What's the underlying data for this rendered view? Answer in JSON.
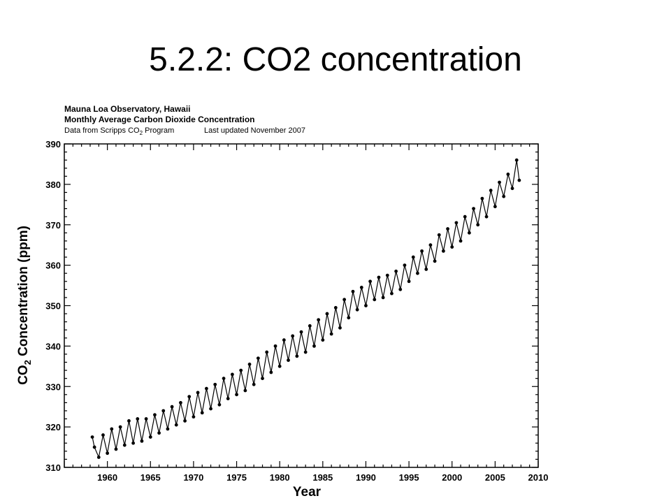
{
  "slide": {
    "title": "5.2.2: CO2 concentration"
  },
  "chart_data": {
    "type": "line",
    "header": {
      "line1": "Mauna Loa Observatory, Hawaii",
      "line2": "Monthly Average Carbon Dioxide Concentration",
      "line3_prefix": "Data from Scripps CO",
      "line3_sub": "2",
      "line3_suffix": " Program",
      "line3_updated": "Last updated November 2007"
    },
    "xlabel": "Year",
    "ylabel_prefix": "CO",
    "ylabel_sub": "2",
    "ylabel_suffix": " Concentration (ppm)",
    "xlim": [
      1955,
      2010
    ],
    "ylim": [
      310,
      390
    ],
    "x_ticks": [
      "1960",
      "1965",
      "1970",
      "1975",
      "1980",
      "1985",
      "1990",
      "1995",
      "2000",
      "2005",
      "2010"
    ],
    "y_ticks": [
      "310",
      "320",
      "330",
      "340",
      "350",
      "360",
      "370",
      "380",
      "390"
    ],
    "grid": false,
    "series": [
      {
        "x": [
          1958.25,
          1958.5,
          1959.0,
          1959.5,
          1960.0,
          1960.5,
          1961.0,
          1961.5,
          1962.0,
          1962.5,
          1963.0,
          1963.5,
          1964.0,
          1964.5,
          1965.0,
          1965.5,
          1966.0,
          1966.5,
          1967.0,
          1967.5,
          1968.0,
          1968.5,
          1969.0,
          1969.5,
          1970.0,
          1970.5,
          1971.0,
          1971.5,
          1972.0,
          1972.5,
          1973.0,
          1973.5,
          1974.0,
          1974.5,
          1975.0,
          1975.5,
          1976.0,
          1976.5,
          1977.0,
          1977.5,
          1978.0,
          1978.5,
          1979.0,
          1979.5,
          1980.0,
          1980.5,
          1981.0,
          1981.5,
          1982.0,
          1982.5,
          1983.0,
          1983.5,
          1984.0,
          1984.5,
          1985.0,
          1985.5,
          1986.0,
          1986.5,
          1987.0,
          1987.5,
          1988.0,
          1988.5,
          1989.0,
          1989.5,
          1990.0,
          1990.5,
          1991.0,
          1991.5,
          1992.0,
          1992.5,
          1993.0,
          1993.5,
          1994.0,
          1994.5,
          1995.0,
          1995.5,
          1996.0,
          1996.5,
          1997.0,
          1997.5,
          1998.0,
          1998.5,
          1999.0,
          1999.5,
          2000.0,
          2000.5,
          2001.0,
          2001.5,
          2002.0,
          2002.5,
          2003.0,
          2003.5,
          2004.0,
          2004.5,
          2005.0,
          2005.5,
          2006.0,
          2006.5,
          2007.0,
          2007.5,
          2007.8
        ],
        "y": [
          317.5,
          315.0,
          312.5,
          318.0,
          313.5,
          319.5,
          314.5,
          320.0,
          315.5,
          321.5,
          316.0,
          322.0,
          316.5,
          322.0,
          317.5,
          323.0,
          318.5,
          324.0,
          319.5,
          325.0,
          320.5,
          326.0,
          321.5,
          327.5,
          322.5,
          328.5,
          323.5,
          329.5,
          324.5,
          330.5,
          325.5,
          332.0,
          327.0,
          333.0,
          328.0,
          334.0,
          329.0,
          335.5,
          330.5,
          337.0,
          332.0,
          338.5,
          333.5,
          340.0,
          335.0,
          341.5,
          336.5,
          342.5,
          337.5,
          343.5,
          338.5,
          345.0,
          340.0,
          346.5,
          341.5,
          348.0,
          343.0,
          349.5,
          344.5,
          351.5,
          347.0,
          353.5,
          349.0,
          354.5,
          350.0,
          356.0,
          351.5,
          357.0,
          352.0,
          357.5,
          353.0,
          358.5,
          354.0,
          360.0,
          356.0,
          362.0,
          358.0,
          363.5,
          359.0,
          365.0,
          361.0,
          367.5,
          363.5,
          369.0,
          364.5,
          370.5,
          366.0,
          372.0,
          368.0,
          374.0,
          370.0,
          376.5,
          372.0,
          378.5,
          374.5,
          380.5,
          377.0,
          382.5,
          379.0,
          386.0,
          381.0
        ]
      }
    ]
  }
}
